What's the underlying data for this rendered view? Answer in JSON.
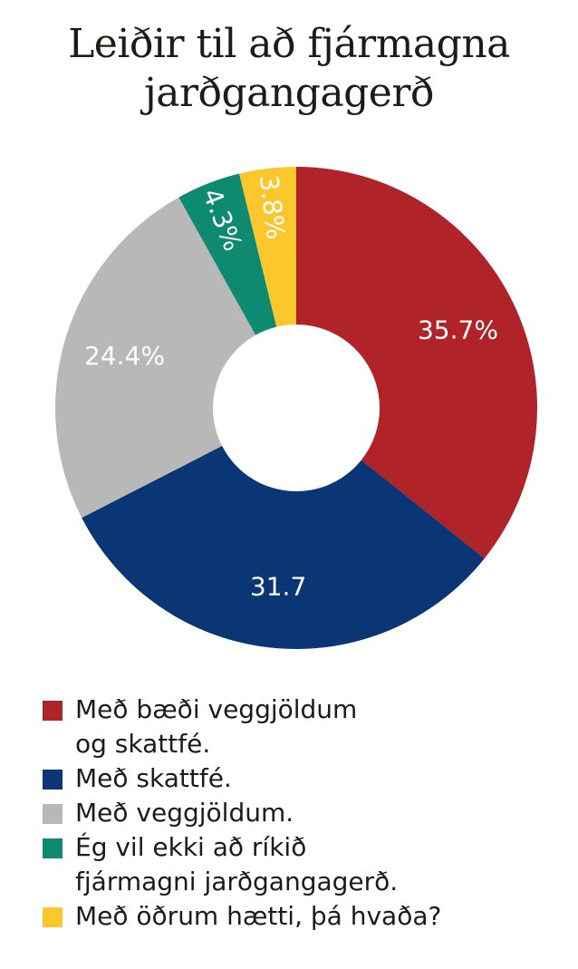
{
  "title_line1": "Leiðir til að fjármagna",
  "title_line2": "jarðgangagerð",
  "chart_data": {
    "type": "pie",
    "title": "Leiðir til að fjármagna jarðgangagerð",
    "slices": [
      {
        "name": "Með bæði veggjöldum\nog skattfé.",
        "value": 35.7,
        "label": "35.7%",
        "color": "#b02329"
      },
      {
        "name": "Með skattfé.",
        "value": 31.7,
        "label": "31.7",
        "color": "#0a3675"
      },
      {
        "name": "Með veggjöldum.",
        "value": 24.4,
        "label": "24.4%",
        "color": "#b8b8b8"
      },
      {
        "name": "Ég vil ekki að ríkið\nfjármagni jarðgangagerð.",
        "value": 4.3,
        "label": "4.3%",
        "color": "#0d8a6f"
      },
      {
        "name": "Með öðrum hætti, þá hvaða?",
        "value": 3.8,
        "label": "3.8%",
        "color": "#fcc72c"
      }
    ]
  }
}
